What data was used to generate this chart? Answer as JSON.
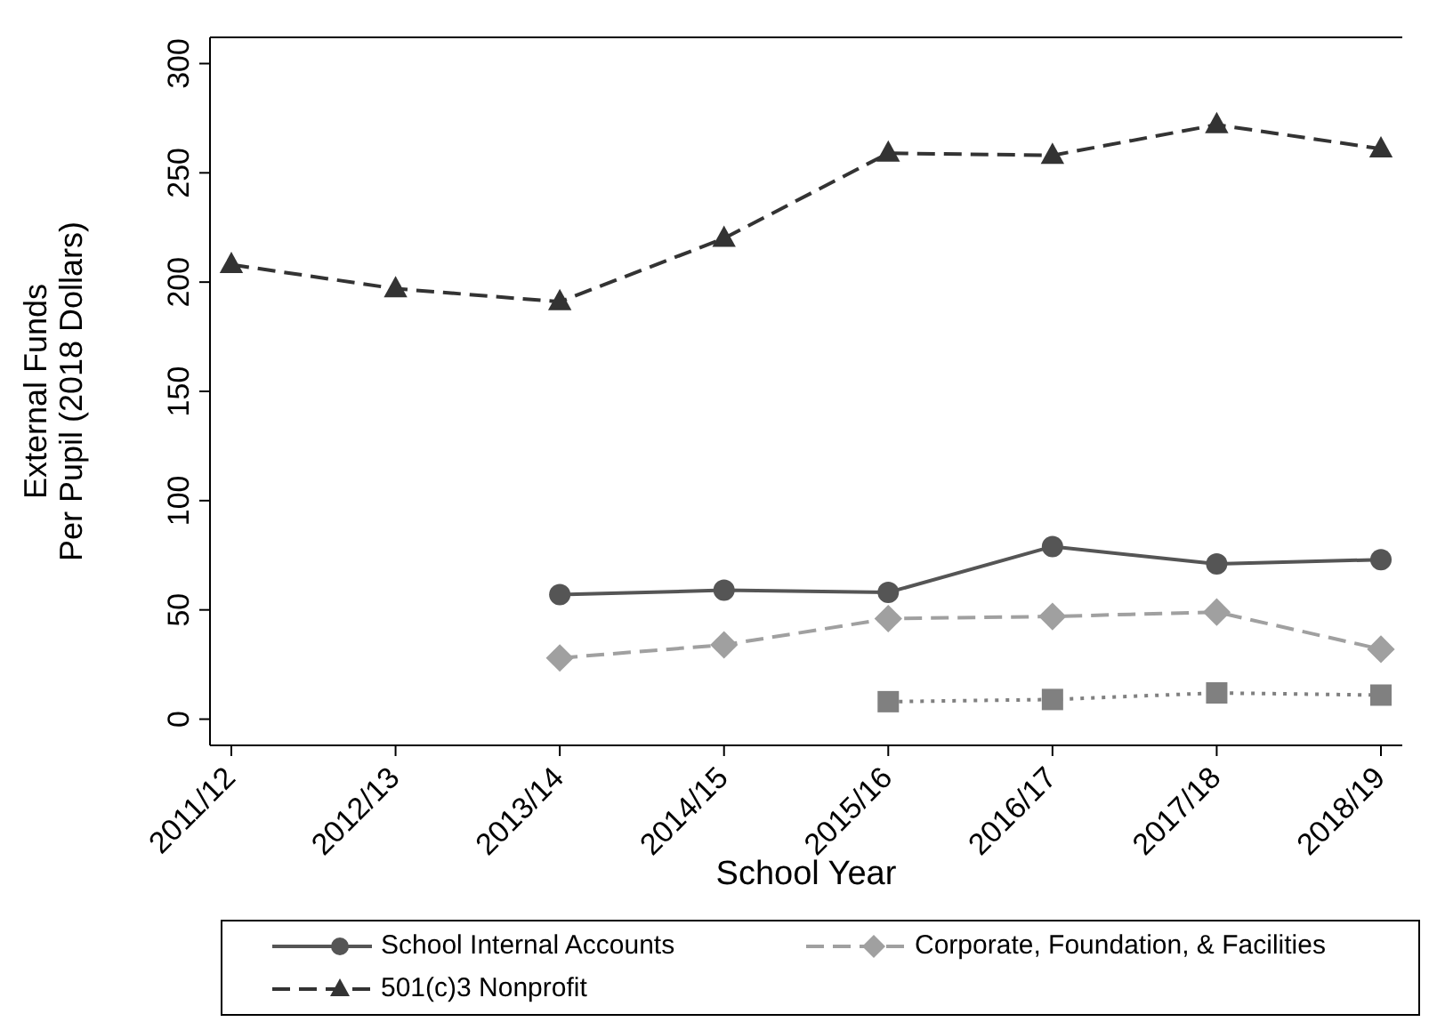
{
  "chart_data": {
    "type": "line",
    "xlabel": "School Year",
    "ylabel": "External Funds Per Pupil (2018 Dollars)",
    "categories": [
      "2011/12",
      "2012/13",
      "2013/14",
      "2014/15",
      "2015/16",
      "2016/17",
      "2017/18",
      "2018/19"
    ],
    "ylim": [
      -12,
      312
    ],
    "yticks": [
      0,
      50,
      100,
      150,
      200,
      250,
      300
    ],
    "grid": false,
    "legend": "bottom",
    "series": [
      {
        "name": "School Internal Accounts",
        "color": "#555555",
        "marker": "circle",
        "line_style": "solid",
        "values": [
          null,
          null,
          57,
          59,
          58,
          79,
          71,
          73
        ]
      },
      {
        "name": "Corporate, Foundation, & Facilities",
        "color": "#a0a0a0",
        "marker": "diamond",
        "line_style": "dashed",
        "values": [
          null,
          null,
          28,
          34,
          46,
          47,
          49,
          32
        ]
      },
      {
        "color": "#808080",
        "marker": "square",
        "line_style": "dotted",
        "values": [
          null,
          null,
          null,
          null,
          8,
          9,
          12,
          11
        ]
      },
      {
        "name": "501(c)3 Nonprofit",
        "color": "#333333",
        "marker": "triangle",
        "line_style": "dashed",
        "values": [
          208,
          197,
          191,
          220,
          259,
          258,
          272,
          261
        ]
      }
    ]
  }
}
